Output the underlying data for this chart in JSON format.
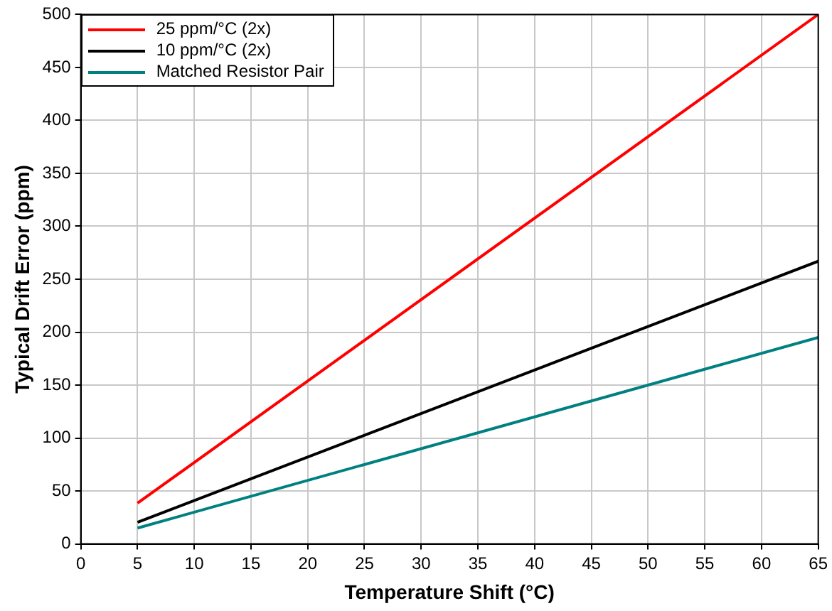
{
  "chart_data": {
    "type": "line",
    "xlabel": "Temperature Shift (°C)",
    "ylabel": "Typical Drift Error (ppm)",
    "x": [
      5,
      65
    ],
    "series": [
      {
        "name": "25 ppm/°C (2x)",
        "color": "#ff0000",
        "values": [
          38.5,
          500
        ]
      },
      {
        "name": "10 ppm/°C (2x)",
        "color": "#000000",
        "values": [
          20.5,
          267
        ]
      },
      {
        "name": "Matched Resistor Pair",
        "color": "#008080",
        "values": [
          15,
          195
        ]
      }
    ],
    "xlim": [
      0,
      65
    ],
    "xticks": [
      0,
      5,
      10,
      15,
      20,
      25,
      30,
      35,
      40,
      45,
      50,
      55,
      60,
      65
    ],
    "ylim": [
      0,
      500
    ],
    "yticks": [
      0,
      50,
      100,
      150,
      200,
      250,
      300,
      350,
      400,
      450,
      500
    ],
    "grid": true,
    "legend": "top left",
    "marker": "none",
    "line_style": "solid"
  }
}
